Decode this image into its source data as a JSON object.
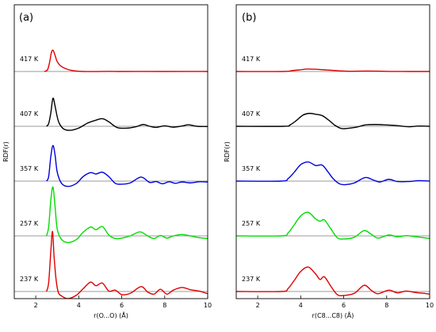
{
  "figure": {
    "ylabel": "RDF(r)"
  },
  "chart_data": [
    {
      "type": "line",
      "panel_label": "(a)",
      "xlabel": "r(O...O) (Å)",
      "ylabel": "RDF(r)",
      "xlim": [
        1,
        10
      ],
      "xticks": [
        2,
        4,
        6,
        8,
        10
      ],
      "grid": false,
      "series": [
        {
          "name": "417 K",
          "color": "#e00000",
          "baseline": 1,
          "x": [
            2.4,
            2.55,
            2.65,
            2.72,
            2.8,
            2.9,
            3.0,
            3.2,
            3.5,
            3.8,
            4.2,
            4.8,
            5.4,
            6.0,
            7.0,
            8.0,
            9.0,
            10.0
          ],
          "y": [
            1.0,
            1.4,
            3.2,
            5.1,
            5.8,
            4.6,
            3.2,
            2.1,
            1.45,
            1.15,
            1.0,
            0.99,
            1.03,
            1.0,
            1.01,
            1.0,
            1.01,
            1.0
          ]
        },
        {
          "name": "407 K",
          "color": "#000000",
          "baseline": 1,
          "x": [
            2.5,
            2.6,
            2.7,
            2.8,
            2.9,
            3.0,
            3.1,
            3.3,
            3.6,
            4.0,
            4.4,
            4.75,
            5.1,
            5.4,
            5.8,
            6.3,
            6.7,
            7.0,
            7.3,
            7.6,
            8.0,
            8.4,
            8.8,
            9.1,
            9.5,
            10.0
          ],
          "y": [
            1.0,
            1.6,
            4.0,
            7.3,
            5.5,
            3.1,
            1.6,
            0.4,
            0.1,
            0.6,
            1.7,
            2.3,
            2.7,
            2.0,
            0.7,
            0.6,
            0.95,
            1.4,
            1.0,
            0.75,
            1.1,
            0.8,
            1.05,
            1.35,
            1.0,
            0.95
          ]
        },
        {
          "name": "357 K",
          "color": "#0000e0",
          "baseline": 1,
          "x": [
            2.5,
            2.6,
            2.7,
            2.8,
            2.9,
            3.0,
            3.2,
            3.5,
            3.9,
            4.2,
            4.55,
            4.8,
            5.1,
            5.4,
            5.7,
            6.0,
            6.4,
            6.9,
            7.3,
            7.6,
            7.9,
            8.2,
            8.5,
            8.8,
            9.2,
            9.6,
            10.0
          ],
          "y": [
            1.0,
            2.0,
            6.5,
            9.0,
            6.8,
            3.0,
            0.5,
            -0.2,
            0.5,
            2.0,
            2.9,
            2.6,
            3.0,
            2.0,
            0.5,
            0.3,
            0.6,
            1.9,
            0.7,
            0.9,
            0.4,
            0.85,
            0.5,
            0.8,
            0.6,
            0.85,
            0.8
          ]
        },
        {
          "name": "257 K",
          "color": "#00dd00",
          "baseline": 1,
          "x": [
            2.5,
            2.6,
            2.7,
            2.8,
            2.9,
            3.0,
            3.2,
            3.5,
            3.9,
            4.2,
            4.55,
            4.8,
            5.1,
            5.4,
            5.7,
            6.0,
            6.4,
            6.85,
            7.2,
            7.5,
            7.8,
            8.1,
            8.4,
            8.8,
            9.2,
            9.6,
            10.0
          ],
          "y": [
            1.0,
            3.0,
            9.0,
            12.0,
            7.5,
            2.5,
            0.2,
            -0.5,
            0.2,
            1.8,
            3.0,
            2.4,
            3.1,
            1.2,
            0.4,
            0.5,
            1.0,
            1.9,
            1.0,
            0.4,
            1.1,
            0.5,
            1.0,
            1.3,
            1.0,
            0.6,
            0.4
          ]
        },
        {
          "name": "237 K",
          "color": "#e00000",
          "baseline": 1,
          "x": [
            2.5,
            2.6,
            2.7,
            2.78,
            2.85,
            2.95,
            3.05,
            3.2,
            3.5,
            3.9,
            4.2,
            4.55,
            4.8,
            5.1,
            5.4,
            5.7,
            6.0,
            6.4,
            6.9,
            7.2,
            7.5,
            7.8,
            8.1,
            8.4,
            8.8,
            9.2,
            9.6,
            10.0
          ],
          "y": [
            1.0,
            3.0,
            10.0,
            14.5,
            9.0,
            3.5,
            0.8,
            0.0,
            -0.6,
            0.2,
            1.6,
            3.1,
            2.3,
            2.9,
            1.1,
            1.3,
            0.3,
            0.6,
            2.1,
            0.9,
            0.4,
            1.5,
            0.4,
            1.3,
            1.9,
            1.4,
            1.1,
            0.5
          ]
        }
      ]
    },
    {
      "type": "line",
      "panel_label": "(b)",
      "xlabel": "r(C8...C8) (Å)",
      "ylabel": "RDF(r)",
      "xlim": [
        1,
        10
      ],
      "xticks": [
        2,
        4,
        6,
        8,
        10
      ],
      "grid": false,
      "series": [
        {
          "name": "417 K",
          "color": "#e00000",
          "baseline": 1,
          "x": [
            1.0,
            3.2,
            3.6,
            4.0,
            4.3,
            4.7,
            5.2,
            5.8,
            6.3,
            7.0,
            7.6,
            8.2,
            9.0,
            10.0
          ],
          "y": [
            1.0,
            1.0,
            1.2,
            1.4,
            1.55,
            1.5,
            1.35,
            1.15,
            1.05,
            1.1,
            1.08,
            1.02,
            1.0,
            1.0
          ]
        },
        {
          "name": "407 K",
          "color": "#000000",
          "baseline": 1,
          "x": [
            1.0,
            3.2,
            3.5,
            3.8,
            4.1,
            4.4,
            4.7,
            5.0,
            5.3,
            5.6,
            5.9,
            6.2,
            6.6,
            7.0,
            7.5,
            8.0,
            8.5,
            9.0,
            9.5,
            10.0
          ],
          "y": [
            1.0,
            1.0,
            1.3,
            2.3,
            3.5,
            3.9,
            3.7,
            3.4,
            2.4,
            1.2,
            0.5,
            0.55,
            0.8,
            1.3,
            1.4,
            1.3,
            1.15,
            0.9,
            1.05,
            1.0
          ]
        },
        {
          "name": "357 K",
          "color": "#0000e0",
          "baseline": 1,
          "x": [
            1.0,
            3.1,
            3.4,
            3.7,
            4.0,
            4.35,
            4.7,
            5.0,
            5.25,
            5.5,
            5.8,
            6.1,
            6.5,
            7.0,
            7.4,
            7.7,
            8.1,
            8.5,
            9.0,
            9.5,
            10.0
          ],
          "y": [
            1.0,
            1.0,
            1.5,
            3.0,
            4.7,
            5.3,
            4.5,
            4.6,
            3.2,
            1.6,
            0.4,
            0.2,
            0.6,
            1.8,
            1.2,
            0.8,
            1.4,
            0.9,
            0.9,
            1.1,
            1.0
          ]
        },
        {
          "name": "257 K",
          "color": "#00dd00",
          "baseline": 1,
          "x": [
            1.0,
            3.1,
            3.4,
            3.7,
            4.0,
            4.35,
            4.7,
            4.9,
            5.1,
            5.4,
            5.7,
            6.0,
            6.5,
            6.95,
            7.3,
            7.6,
            8.1,
            8.5,
            8.9,
            9.3,
            9.7,
            10.0
          ],
          "y": [
            1.0,
            1.0,
            1.6,
            3.5,
            5.5,
            6.3,
            4.8,
            4.3,
            4.6,
            2.6,
            0.6,
            0.3,
            0.7,
            2.2,
            1.3,
            0.5,
            1.2,
            0.8,
            1.05,
            0.85,
            0.6,
            0.4
          ]
        },
        {
          "name": "237 K",
          "color": "#e00000",
          "baseline": 1,
          "x": [
            1.0,
            3.1,
            3.4,
            3.7,
            4.0,
            4.35,
            4.7,
            4.9,
            5.1,
            5.4,
            5.7,
            6.0,
            6.5,
            6.95,
            7.3,
            7.6,
            8.1,
            8.5,
            8.9,
            9.3,
            9.7,
            10.0
          ],
          "y": [
            1.0,
            1.0,
            1.6,
            3.5,
            5.5,
            6.5,
            4.9,
            3.7,
            4.3,
            2.2,
            0.3,
            0.1,
            0.6,
            2.4,
            1.2,
            0.5,
            1.3,
            0.7,
            1.1,
            0.8,
            0.6,
            0.4
          ]
        }
      ]
    }
  ]
}
